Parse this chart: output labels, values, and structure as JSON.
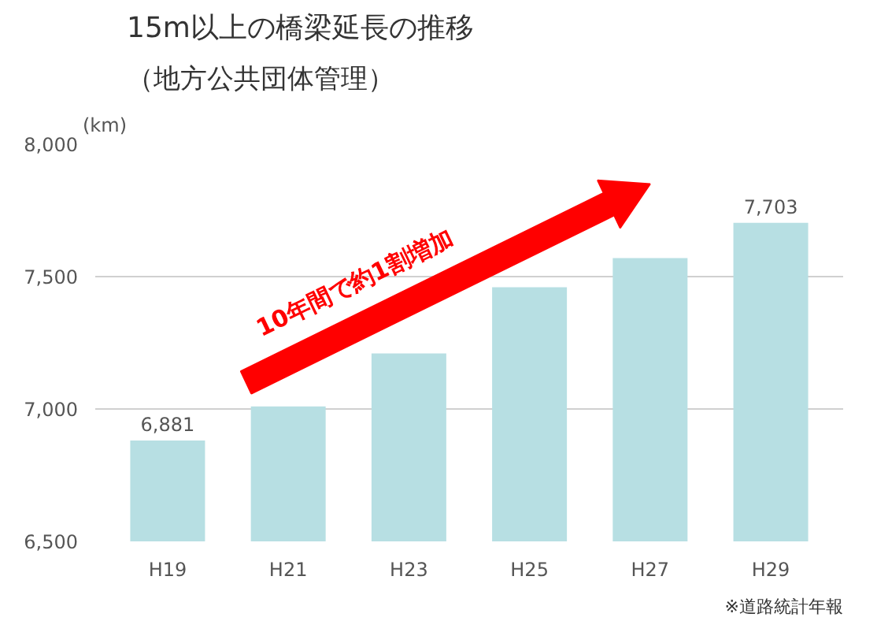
{
  "chart_data": {
    "type": "bar",
    "title": "15m以上の橋梁延長の推移",
    "subtitle": "（地方公共団体管理）",
    "ylabel": "(km)",
    "categories": [
      "H19",
      "H21",
      "H23",
      "H25",
      "H27",
      "H29"
    ],
    "values": [
      6881,
      7010,
      7210,
      7460,
      7570,
      7703
    ],
    "value_labels": [
      "6,881",
      null,
      null,
      null,
      null,
      "7,703"
    ],
    "color": "#b7dfe3",
    "ylim": [
      6500,
      8000
    ],
    "yticks": [
      {
        "value": 6500,
        "label": "6,500"
      },
      {
        "value": 7000,
        "label": "7,000"
      },
      {
        "value": 7500,
        "label": "7,500"
      },
      {
        "value": 8000,
        "label": "8,000"
      }
    ],
    "grid": "y",
    "annotations": [
      "10年間で約1割増加",
      "※道路統計年報"
    ]
  }
}
